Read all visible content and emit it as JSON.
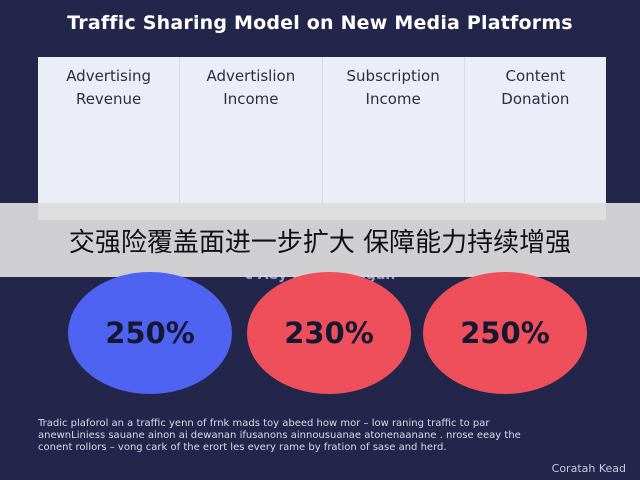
{
  "title": "Traffic Sharing Model on New Media Platforms",
  "columns": [
    {
      "line1": "Advertising",
      "line2": "Revenue"
    },
    {
      "line1": "Advertislion",
      "line2": "Income"
    },
    {
      "line1": "Subscription",
      "line2": "Income"
    },
    {
      "line1": "Content",
      "line2": "Donation"
    }
  ],
  "banner": "交强险覆盖面进一步扩大 保障能力持续增强",
  "subheading": "c Aey ortentin igan",
  "circles": [
    {
      "value": "250%",
      "color": "#4f63f2"
    },
    {
      "value": "230%",
      "color": "#ee4f5a"
    },
    {
      "value": "250%",
      "color": "#ee4f5a"
    }
  ],
  "footer": {
    "line1": "Tradic plaforol an a traffic yenn of frnk mads toy abeed how mor – low raning traffic to par",
    "line2": "anewnLiniess sauane ainon ai dewanan ifusanons ainnousuanae atonenaanane . nrose eeay the",
    "line3": "conent rollors – vong cark of the erort les every rame by fration of sase and herd."
  },
  "credit": "Coratah Kead"
}
